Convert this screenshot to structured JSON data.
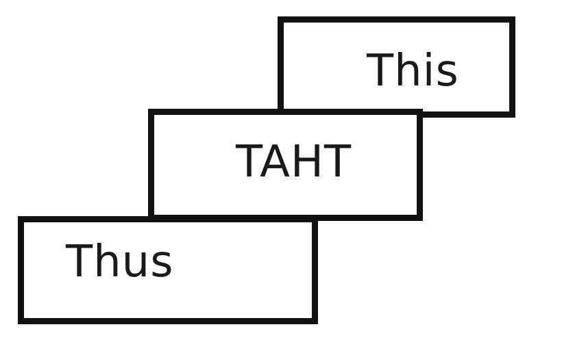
{
  "boxes": {
    "top": {
      "text": "This"
    },
    "middle": {
      "text": "TAHT"
    },
    "bottom": {
      "text": "Thus"
    }
  },
  "colors": {
    "border": "#111111",
    "text": "#1a1a1a",
    "background": "#ffffff"
  }
}
